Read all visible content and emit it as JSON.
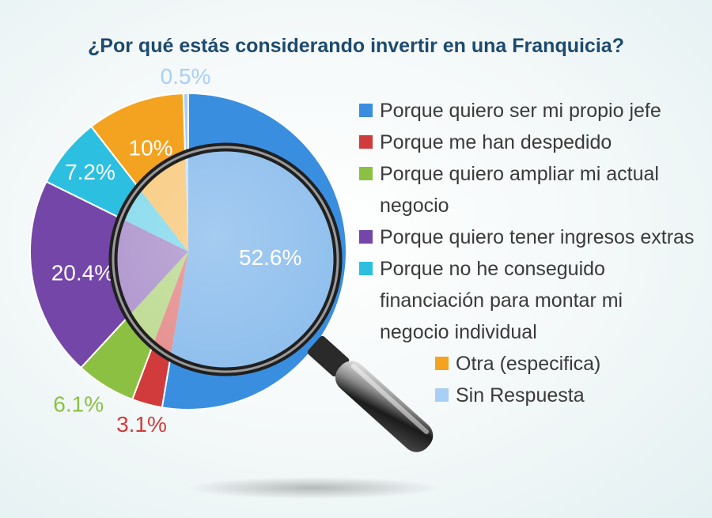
{
  "chart_data": {
    "type": "pie",
    "title": "¿Por qué estás considerando invertir en una Franquicia?",
    "slices": [
      {
        "label": "Porque quiero ser mi propio jefe",
        "value": 52.6,
        "display": "52.6%",
        "color": "#3a8ee0"
      },
      {
        "label": "Porque me han despedido",
        "value": 3.1,
        "display": "3.1%",
        "color": "#d23b3b"
      },
      {
        "label": "Porque quiero ampliar mi actual negocio",
        "value": 6.1,
        "display": "6.1%",
        "color": "#8cc043"
      },
      {
        "label": "Porque quiero tener ingresos extras",
        "value": 20.4,
        "display": "20.4%",
        "color": "#7346a8"
      },
      {
        "label": "Porque no he conseguido financiación para montar mi negocio individual",
        "value": 7.2,
        "display": "7.2%",
        "color": "#2dbfe0"
      },
      {
        "label": "Otra (especifica)",
        "value": 10,
        "display": "10%",
        "color": "#f4a321"
      },
      {
        "label": "Sin Respuesta",
        "value": 0.5,
        "display": "0.5%",
        "color": "#a8cff5"
      }
    ],
    "legend_position": "right"
  },
  "decoration": {
    "icon": "magnifying-glass-icon"
  }
}
